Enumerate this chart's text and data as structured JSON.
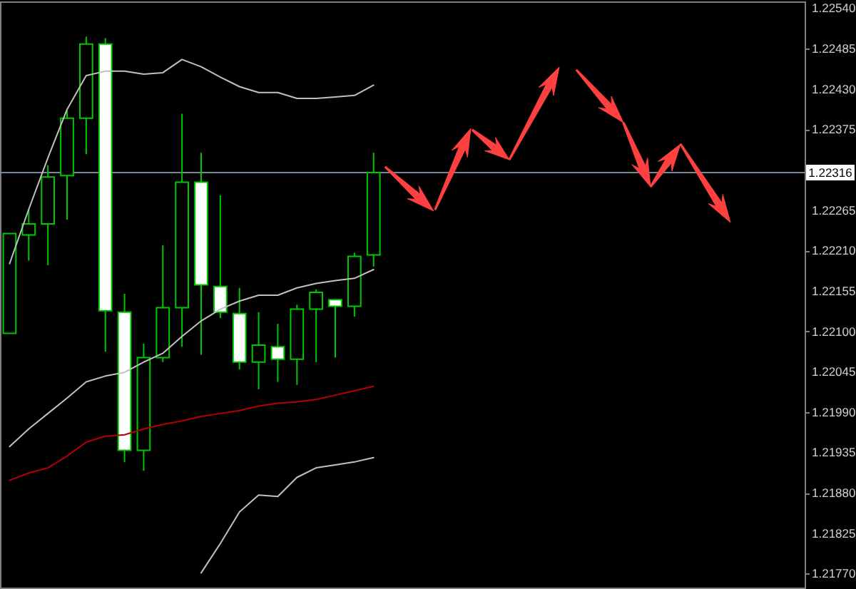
{
  "chart_data": {
    "type": "candlestick",
    "categories": [
      null,
      null,
      null,
      null,
      null,
      null,
      null,
      null,
      null,
      null,
      null,
      null,
      null,
      null,
      null,
      null,
      null,
      null,
      null,
      null,
      null,
      null,
      null,
      null,
      null,
      null,
      null,
      null,
      null,
      null,
      null,
      null,
      null,
      null,
      null,
      null,
      null,
      null,
      null,
      null,
      null,
      null
    ],
    "ohlc": [
      [
        1.22097,
        1.22233,
        1.22097,
        1.22233
      ],
      [
        1.22231,
        1.22266,
        1.22196,
        1.22246
      ],
      [
        1.22246,
        1.22326,
        1.2219,
        1.2231
      ],
      [
        1.22312,
        1.224,
        1.22252,
        1.2239
      ],
      [
        1.2239,
        1.22501,
        1.22341,
        1.22491
      ],
      [
        1.22491,
        1.22499,
        1.22072,
        1.22128
      ],
      [
        1.22126,
        1.22151,
        1.21922,
        1.21938
      ],
      [
        1.21938,
        1.22083,
        1.2191,
        1.22064
      ],
      [
        1.22064,
        1.22217,
        1.22058,
        1.22132
      ],
      [
        1.22132,
        1.22396,
        1.22079,
        1.22303
      ],
      [
        1.22303,
        1.22343,
        1.22068,
        1.22163
      ],
      [
        1.22161,
        1.22285,
        1.22118,
        1.22126
      ],
      [
        1.22124,
        1.22159,
        1.22048,
        1.22058
      ],
      [
        1.22058,
        1.22126,
        1.22021,
        1.22081
      ],
      [
        1.22079,
        1.2211,
        1.22031,
        1.22062
      ],
      [
        1.22062,
        1.22136,
        1.22027,
        1.2213
      ],
      [
        1.2213,
        1.22157,
        1.22058,
        1.22153
      ],
      [
        1.22143,
        1.22143,
        1.22064,
        1.22134
      ],
      [
        1.22134,
        1.22207,
        1.2212,
        1.22202
      ],
      [
        1.22204,
        1.22343,
        1.22188,
        1.22316
      ],
      null,
      null,
      null,
      null,
      null,
      null,
      null,
      null,
      null,
      null,
      null,
      null,
      null,
      null,
      null,
      null,
      null,
      null,
      null,
      null,
      null,
      null
    ],
    "color": "#00c800",
    "colors": [
      "#000000",
      "#000000",
      "#000000",
      "#000000",
      "#000000",
      "#ffffff",
      "#ffffff",
      "#000000",
      "#000000",
      "#000000",
      "#ffffff",
      "#ffffff",
      "#ffffff",
      "#000000",
      "#ffffff",
      "#000000",
      "#000000",
      "#ffffff",
      "#000000",
      "#000000",
      null,
      null,
      null,
      null,
      null,
      null,
      null,
      null,
      null,
      null,
      null,
      null,
      null,
      null,
      null,
      null,
      null,
      null,
      null,
      null,
      null,
      null
    ],
    "series": [
      {
        "type": "line",
        "color": "#c0c0c0",
        "values": [
          1.22192,
          1.22266,
          1.22336,
          1.22402,
          1.22448,
          1.22454,
          1.22454,
          1.2245,
          1.22452,
          1.2247,
          1.2246,
          1.22446,
          1.22433,
          1.22425,
          1.22425,
          1.22417,
          1.22417,
          1.22419,
          1.22421,
          1.22435,
          null,
          null,
          null,
          null,
          null,
          null,
          null,
          null,
          null,
          null,
          null,
          null,
          null,
          null,
          null,
          null,
          null,
          null,
          null,
          null,
          null,
          null
        ]
      },
      {
        "type": "line",
        "color": "#c0c0c0",
        "values": [
          1.21943,
          1.21967,
          1.21988,
          1.22009,
          1.22031,
          1.22039,
          1.22044,
          1.22058,
          1.2207,
          1.22093,
          1.22114,
          1.2213,
          1.22141,
          1.22149,
          1.22149,
          1.22159,
          1.22165,
          1.22169,
          1.22172,
          1.22184,
          null,
          null,
          null,
          null,
          null,
          null,
          null,
          null,
          null,
          null,
          null,
          null,
          null,
          null,
          null,
          null,
          null,
          null,
          null,
          null,
          null,
          null
        ]
      },
      {
        "type": "line",
        "color": "#c0c0c0",
        "values": [
          null,
          null,
          null,
          null,
          null,
          null,
          null,
          null,
          null,
          null,
          1.21771,
          1.21811,
          1.21854,
          1.21877,
          1.21875,
          1.21901,
          1.21914,
          1.21918,
          1.21922,
          1.21928,
          null,
          null,
          null,
          null,
          null,
          null,
          null,
          null,
          null,
          null,
          null,
          null,
          null,
          null,
          null,
          null,
          null,
          null,
          null,
          null,
          null,
          null
        ]
      },
      {
        "type": "line",
        "color": "#b40000",
        "values": [
          1.21897,
          1.21907,
          1.21914,
          1.2193,
          1.21949,
          1.21957,
          1.21959,
          1.21967,
          1.21973,
          1.21978,
          1.21984,
          1.21988,
          1.21992,
          1.21998,
          1.22002,
          1.22004,
          1.22007,
          1.22013,
          1.22019,
          1.22025,
          null,
          null,
          null,
          null,
          null,
          null,
          null,
          null,
          null,
          null,
          null,
          null,
          null,
          null,
          null,
          null,
          null,
          null,
          null,
          null,
          null,
          null
        ]
      }
    ],
    "ylim": [
      1.21751,
      1.22549
    ],
    "yticks": [
      {
        "value": 1.2254,
        "label": "1.22540"
      },
      1.22485,
      {
        "value": 1.2243,
        "label": "1.22430"
      },
      1.22375,
      1.22265,
      {
        "value": 1.2221,
        "label": "1.22210"
      },
      1.22155,
      {
        "value": 1.221,
        "label": "1.22100"
      },
      1.22045,
      {
        "value": 1.2199,
        "label": "1.21990"
      },
      1.21935,
      {
        "value": 1.2188,
        "label": "1.21880"
      },
      1.21825,
      {
        "value": 1.2177,
        "label": "1.21770"
      }
    ],
    "ref_lines": [
      {
        "axis": "y",
        "value": 1.22316,
        "label": "1.22316",
        "color": "#778899"
      }
    ],
    "tick_labels": "y"
  }
}
